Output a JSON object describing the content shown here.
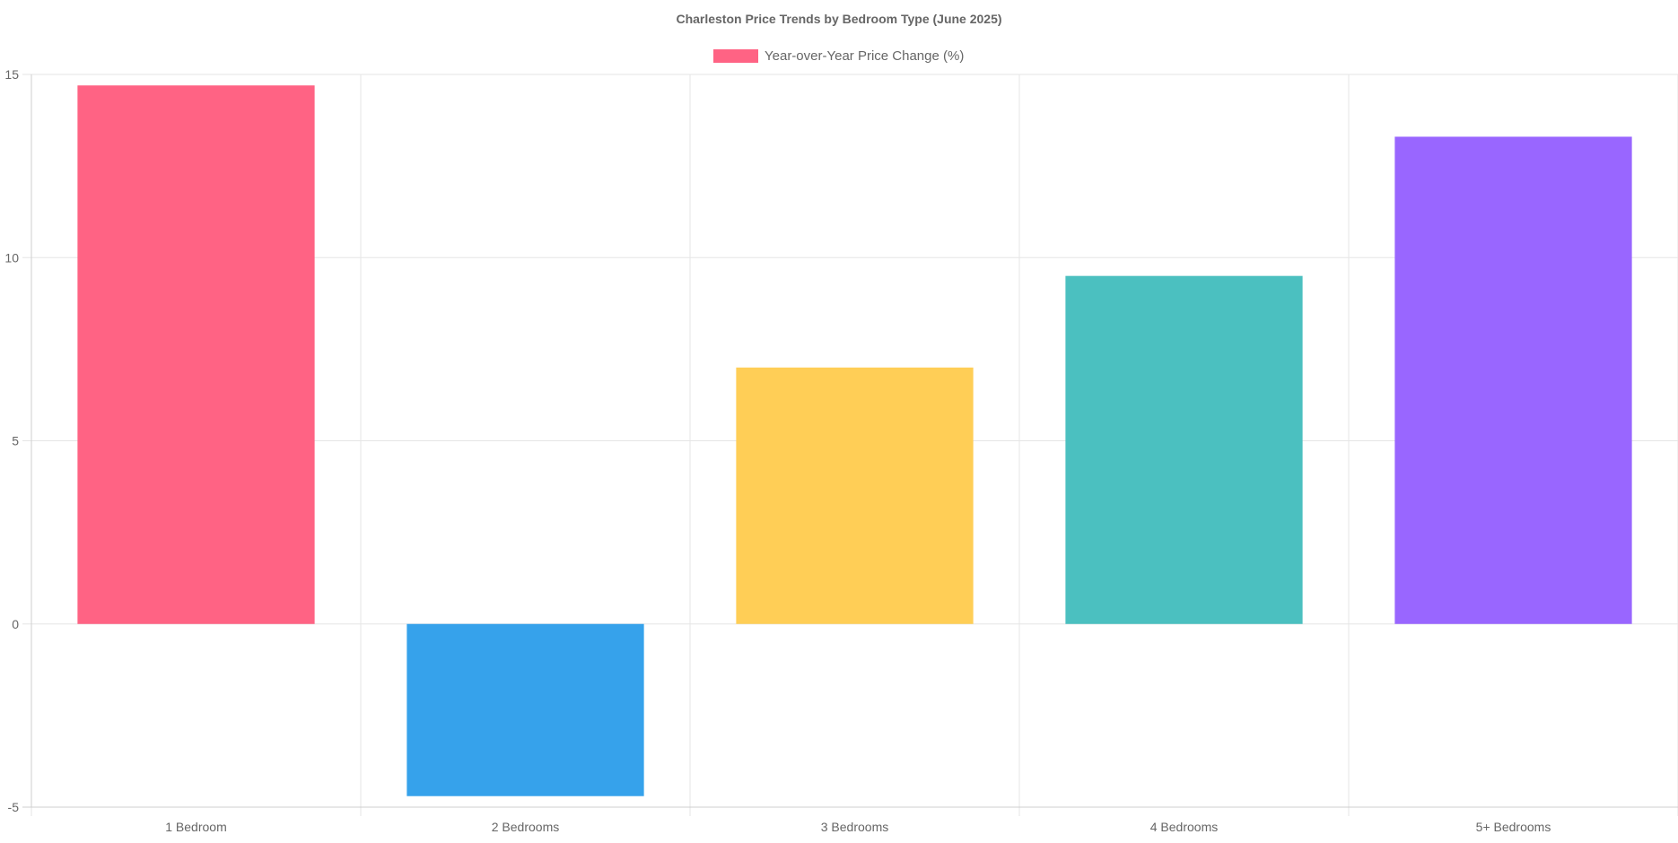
{
  "chart_data": {
    "type": "bar",
    "title": "Charleston Price Trends by Bedroom Type (June 2025)",
    "legend": {
      "position": "top",
      "label": "Year-over-Year Price Change (%)",
      "swatch_color": "#FF6384"
    },
    "categories": [
      "1 Bedroom",
      "2 Bedrooms",
      "3 Bedrooms",
      "4 Bedrooms",
      "5+ Bedrooms"
    ],
    "series": [
      {
        "name": "Year-over-Year Price Change (%)",
        "values": [
          14.7,
          -4.7,
          7.0,
          9.5,
          13.3
        ],
        "colors": [
          "#FF6384",
          "#36A2EB",
          "#FFCE56",
          "#4BC0C0",
          "#9966FF"
        ]
      }
    ],
    "ylim": [
      -5,
      15
    ],
    "yticks": [
      -5,
      0,
      5,
      10,
      15
    ],
    "grid": true,
    "xlabel": "",
    "ylabel": ""
  }
}
